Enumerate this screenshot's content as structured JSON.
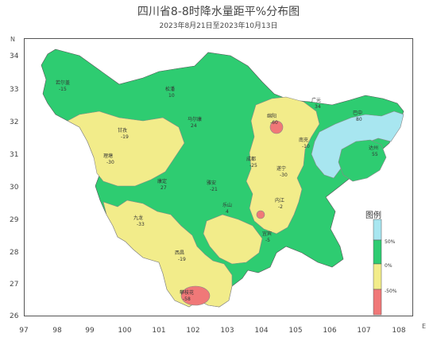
{
  "title": "四川省8-8时降水量距平%分布图",
  "subtitle": "2023年8月21日至2023年10月13日",
  "axes": {
    "lat_label": "N",
    "lon_label": "E",
    "lat_ticks": [
      "34",
      "33",
      "32",
      "31",
      "30",
      "29",
      "28",
      "27",
      "26"
    ],
    "lon_ticks": [
      "97",
      "98",
      "99",
      "100",
      "101",
      "102",
      "103",
      "104",
      "105",
      "106",
      "107",
      "108"
    ]
  },
  "legend": {
    "title": "图例",
    "labels": [
      "50%",
      "0%",
      "-50%"
    ],
    "colors": [
      "#a8e6f0",
      "#2ecc71",
      "#f2ec8a",
      "#f07878"
    ]
  },
  "colors": {
    "above_50": "#a8e6f0",
    "zero_to_50": "#2ecc71",
    "minus50_to_zero": "#f2ec8a",
    "below_minus50": "#f07878",
    "frame": "#555555"
  },
  "stations": [
    {
      "name": "若尔盖",
      "value": "-15"
    },
    {
      "name": "松潘",
      "value": "10"
    },
    {
      "name": "马尔康",
      "value": "24"
    },
    {
      "name": "甘孜",
      "value": "-19"
    },
    {
      "name": "理塘",
      "value": "-30"
    },
    {
      "name": "康定",
      "value": "27"
    },
    {
      "name": "雅安",
      "value": "-21"
    },
    {
      "name": "成都",
      "value": "-25"
    },
    {
      "name": "绵阳",
      "value": "-60"
    },
    {
      "name": "广元",
      "value": "34"
    },
    {
      "name": "巴中",
      "value": "80"
    },
    {
      "name": "达州",
      "value": "55"
    },
    {
      "name": "南充",
      "value": "-10"
    },
    {
      "name": "遂宁",
      "value": "-30"
    },
    {
      "name": "内江",
      "value": "-2"
    },
    {
      "name": "乐山",
      "value": "4"
    },
    {
      "name": "宜宾",
      "value": "-5"
    },
    {
      "name": "西昌",
      "value": "-19"
    },
    {
      "name": "攀枝花",
      "value": "-58"
    },
    {
      "name": "九龙",
      "value": "-33"
    }
  ]
}
